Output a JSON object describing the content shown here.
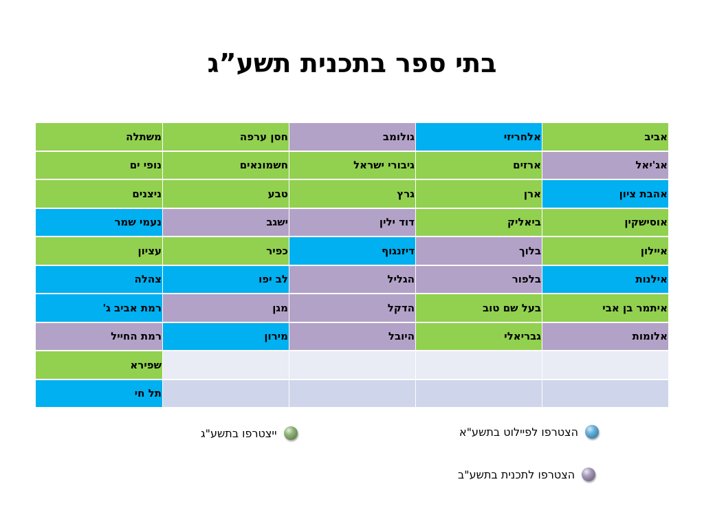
{
  "title": "בתי ספר בתכנית תשע”ג",
  "colors": {
    "green": "#92d050",
    "blue": "#00b0f0",
    "purple": "#b3a2c7",
    "empty_light": "#e9ebf5",
    "empty_dark": "#cfd5ea"
  },
  "table": {
    "rows": [
      [
        "אביב",
        "אלחריזי",
        "גולומב",
        "חסן ערפה",
        "משתלה"
      ],
      [
        "אג'יאל",
        "ארזים",
        "גיבורי ישראל",
        "חשמונאים",
        "נופי ים"
      ],
      [
        "אהבת ציון",
        "ארן",
        "גרץ",
        "טבע",
        "ניצנים"
      ],
      [
        "אוסישקין",
        "ביאליק",
        "דוד ילין",
        "ישגב",
        "נעמי שמר"
      ],
      [
        "איילון",
        "בלוך",
        "דיזנגוף",
        "כפיר",
        "עציון"
      ],
      [
        "אילנות",
        "בלפור",
        "הגליל",
        "לב יפו",
        "צהלה"
      ],
      [
        "איתמר בן אבי",
        "בעל שם טוב",
        "הדקל",
        "מגן",
        "רמת אביב ג'"
      ],
      [
        "אלומות",
        "גבריאלי",
        "היובל",
        "מירון",
        "רמת החייל"
      ],
      [
        "",
        "",
        "",
        "",
        "שפירא"
      ],
      [
        "",
        "",
        "",
        "",
        "תל חי"
      ]
    ],
    "row_colors": [
      [
        "green",
        "blue",
        "purple",
        "green",
        "green"
      ],
      [
        "purple",
        "green",
        "green",
        "green",
        "green"
      ],
      [
        "blue",
        "green",
        "green",
        "green",
        "green"
      ],
      [
        "green",
        "green",
        "purple",
        "purple",
        "blue"
      ],
      [
        "green",
        "purple",
        "blue",
        "green",
        "green"
      ],
      [
        "blue",
        "purple",
        "purple",
        "blue",
        "blue"
      ],
      [
        "green",
        "green",
        "purple",
        "purple",
        "blue"
      ],
      [
        "purple",
        "green",
        "purple",
        "blue",
        "purple"
      ],
      [
        "empty_light",
        "empty_light",
        "empty_light",
        "empty_light",
        "green"
      ],
      [
        "empty_dark",
        "empty_dark",
        "empty_dark",
        "empty_dark",
        "blue"
      ]
    ]
  },
  "legend": {
    "pilot_label": "הצטרפו לפיילוט בתשע\"א",
    "pilot_bullet": "blue-sphere-bullet",
    "program_label": "הצטרפו לתכנית בתשע\"ב",
    "program_bullet": "purple-sphere-bullet",
    "joining_label": "ייצטרפו בתשע\"ג",
    "joining_bullet": "green-sphere-bullet"
  }
}
